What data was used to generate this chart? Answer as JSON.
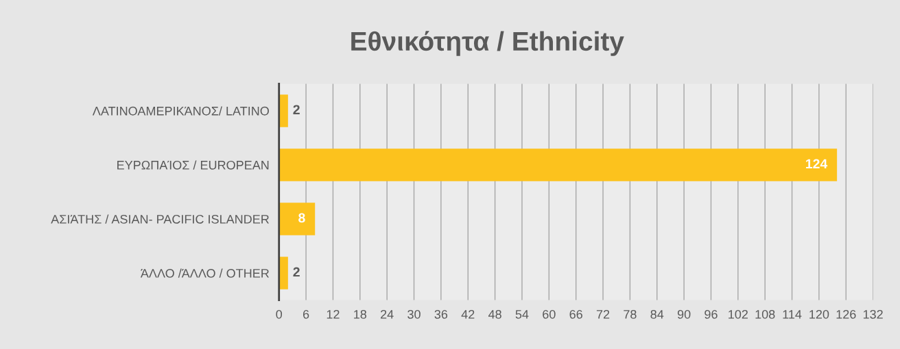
{
  "chart_data": {
    "type": "bar",
    "orientation": "horizontal",
    "title": "Εθνικότητα / Ethnicity",
    "categories": [
      "ΛΑΤΙΝΟΑΜΕΡΙΚΆΝΟΣ/ LATINO",
      "ΕΥΡΩΠΑΊΟΣ / EUROPEAN",
      "ΑΣΙΆΤΗΣ / ASIAN- PACIFIC ISLANDER",
      "ΆΛΛΟ /ΆΛΛΟ / OTHER"
    ],
    "values": [
      2,
      124,
      8,
      2
    ],
    "color": "#fcc21d",
    "xlim": [
      0,
      132
    ],
    "xticks": [
      0,
      6,
      12,
      18,
      24,
      30,
      36,
      42,
      48,
      54,
      60,
      66,
      72,
      78,
      84,
      90,
      96,
      102,
      108,
      114,
      120,
      126,
      132
    ],
    "grid": "x",
    "data_labels": true,
    "legend": false
  }
}
